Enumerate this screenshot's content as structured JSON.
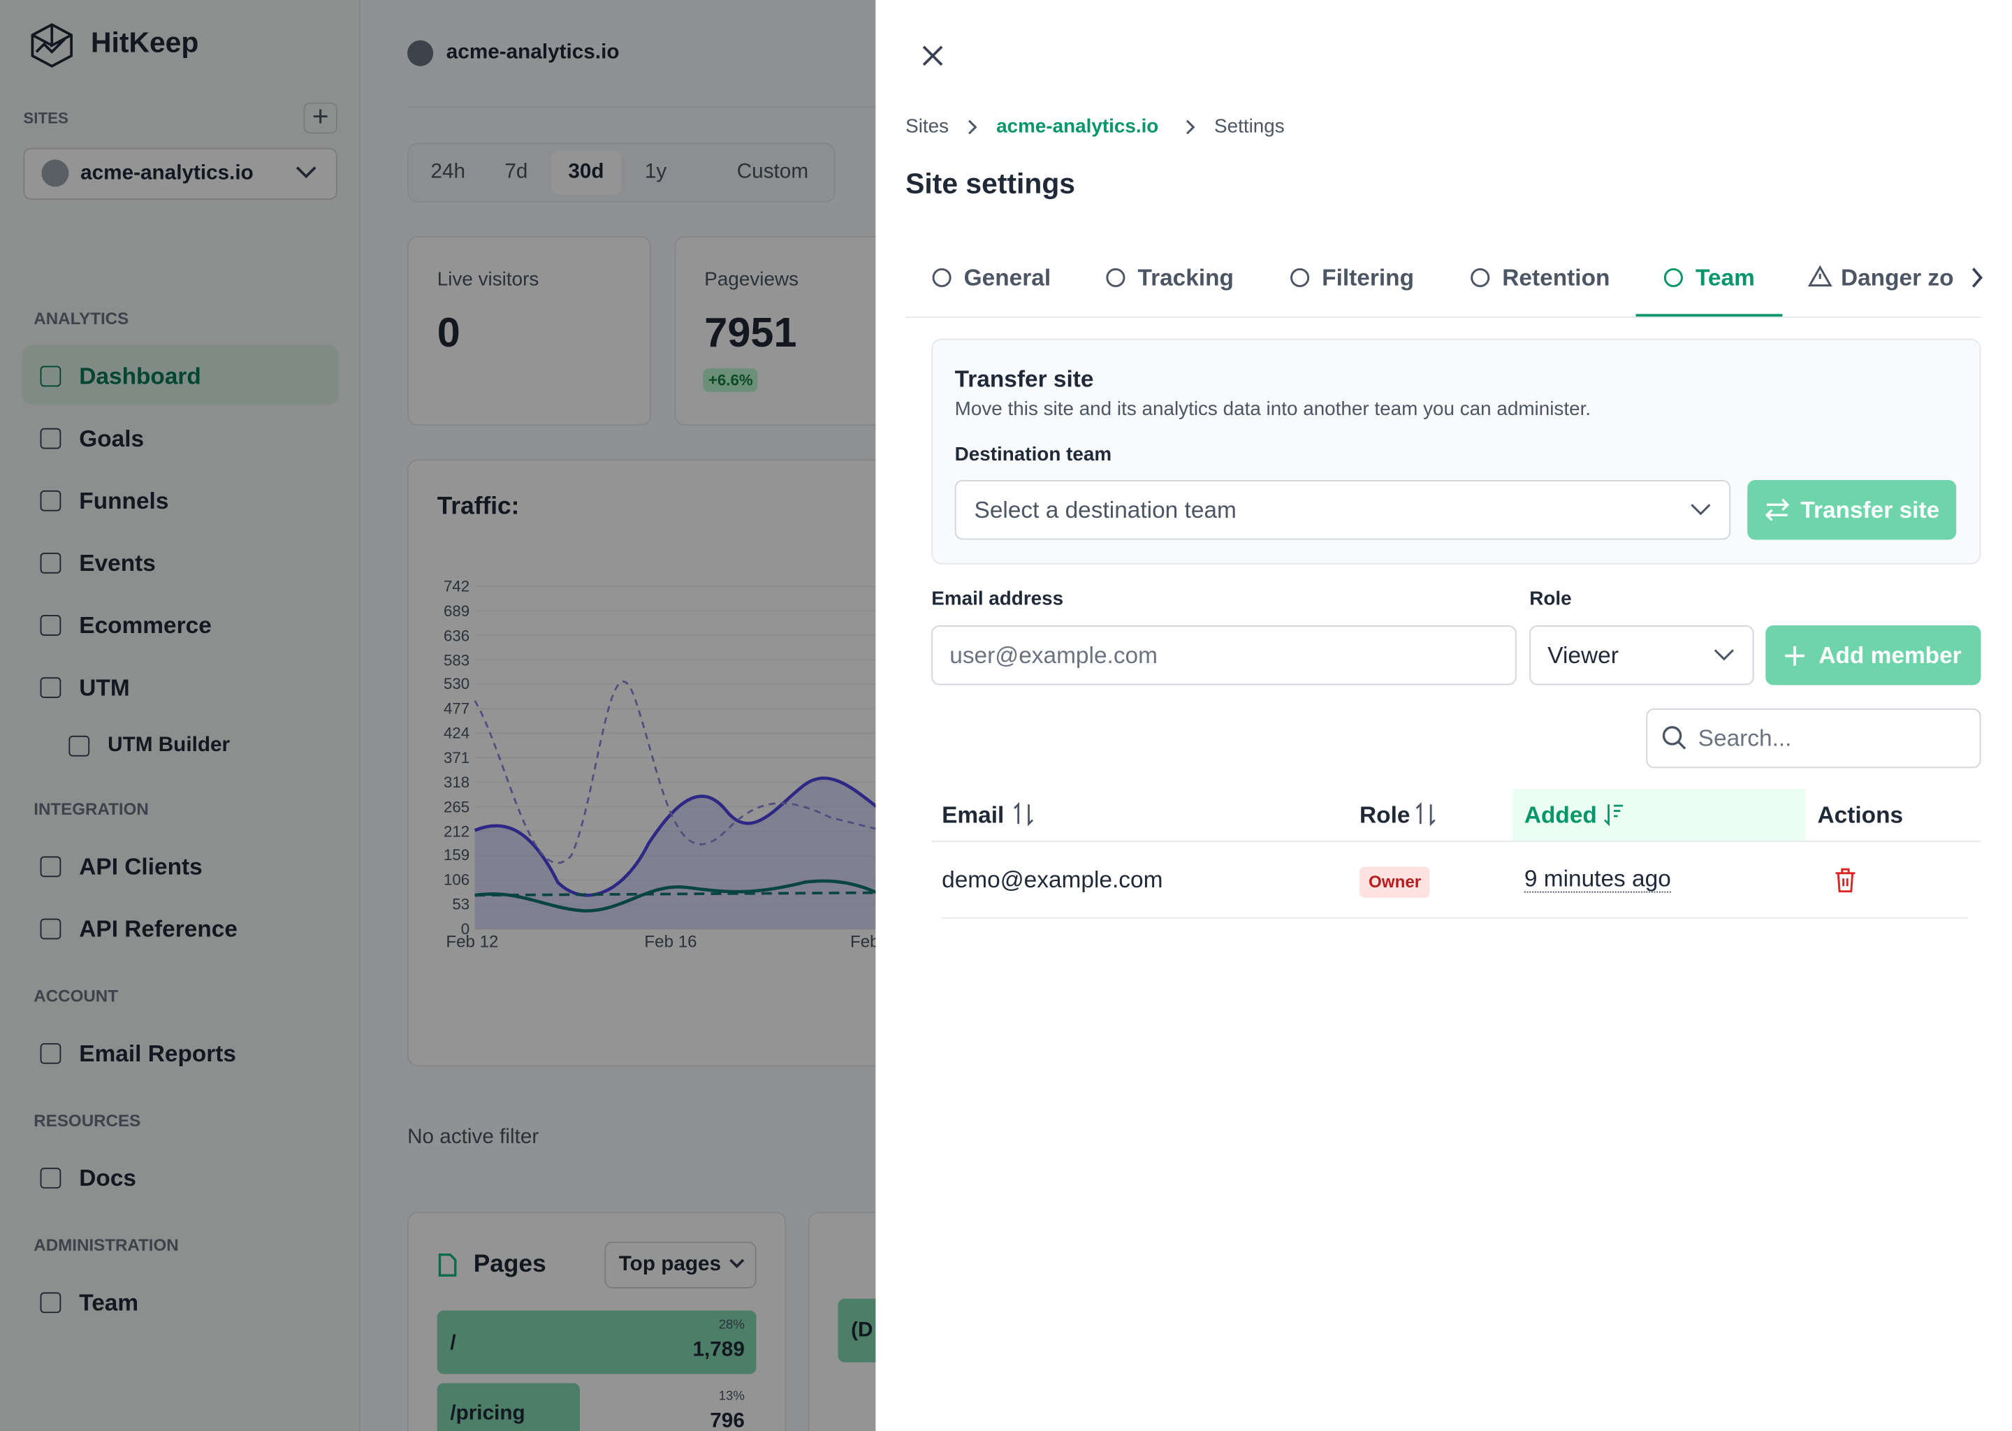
{
  "sidebar": {
    "brand": "HitKeep",
    "sites_label": "SITES",
    "site": "acme-analytics.io",
    "sections": [
      {
        "title": "ANALYTICS",
        "items": [
          "Dashboard",
          "Goals",
          "Funnels",
          "Events",
          "Ecommerce",
          "UTM",
          "UTM Builder"
        ]
      },
      {
        "title": "INTEGRATION",
        "items": [
          "API Clients",
          "API Reference"
        ]
      },
      {
        "title": "ACCOUNT",
        "items": [
          "Email Reports"
        ]
      },
      {
        "title": "RESOURCES",
        "items": [
          "Docs"
        ]
      },
      {
        "title": "ADMINISTRATION",
        "items": [
          "Team"
        ]
      }
    ]
  },
  "main": {
    "site": "acme-analytics.io",
    "ranges": [
      "24h",
      "7d",
      "30d",
      "1y",
      "Custom"
    ],
    "stats": [
      {
        "label": "Live visitors",
        "value": "0"
      },
      {
        "label": "Pageviews",
        "value": "7951",
        "change": "+6.6%"
      }
    ],
    "traffic": {
      "title": "Traffic:",
      "yticks": [
        "742",
        "689",
        "636",
        "583",
        "530",
        "477",
        "424",
        "371",
        "318",
        "265",
        "212",
        "159",
        "106",
        "53",
        "0"
      ],
      "xticks": [
        "Feb 12",
        "Feb 16",
        "Feb"
      ]
    },
    "filter": "No active filter",
    "pages": {
      "title": "Pages",
      "select": "Top pages",
      "rows": [
        {
          "path": "/",
          "share": "28%",
          "count": "1,789"
        },
        {
          "path": "/pricing",
          "share": "13%",
          "count": "796"
        }
      ]
    },
    "sources_row": "(D"
  },
  "panel": {
    "breadcrumb": [
      "Sites",
      "acme-analytics.io",
      "Settings"
    ],
    "title": "Site settings",
    "tabs": [
      "General",
      "Tracking",
      "Filtering",
      "Retention",
      "Team",
      "Danger zone"
    ],
    "transfer": {
      "title": "Transfer site",
      "description": "Move this site and its analytics data into another team you can administer.",
      "label": "Destination team",
      "placeholder": "Select a destination team",
      "button": "Transfer site"
    },
    "invite": {
      "email_label": "Email address",
      "email_placeholder": "user@example.com",
      "role_label": "Role",
      "role": "Viewer",
      "button": "Add member"
    },
    "search_placeholder": "Search...",
    "table": {
      "headers": [
        "Email",
        "Role",
        "Added",
        "Actions"
      ],
      "rows": [
        [
          "demo@example.com",
          "Owner",
          "9 minutes ago"
        ]
      ]
    }
  }
}
